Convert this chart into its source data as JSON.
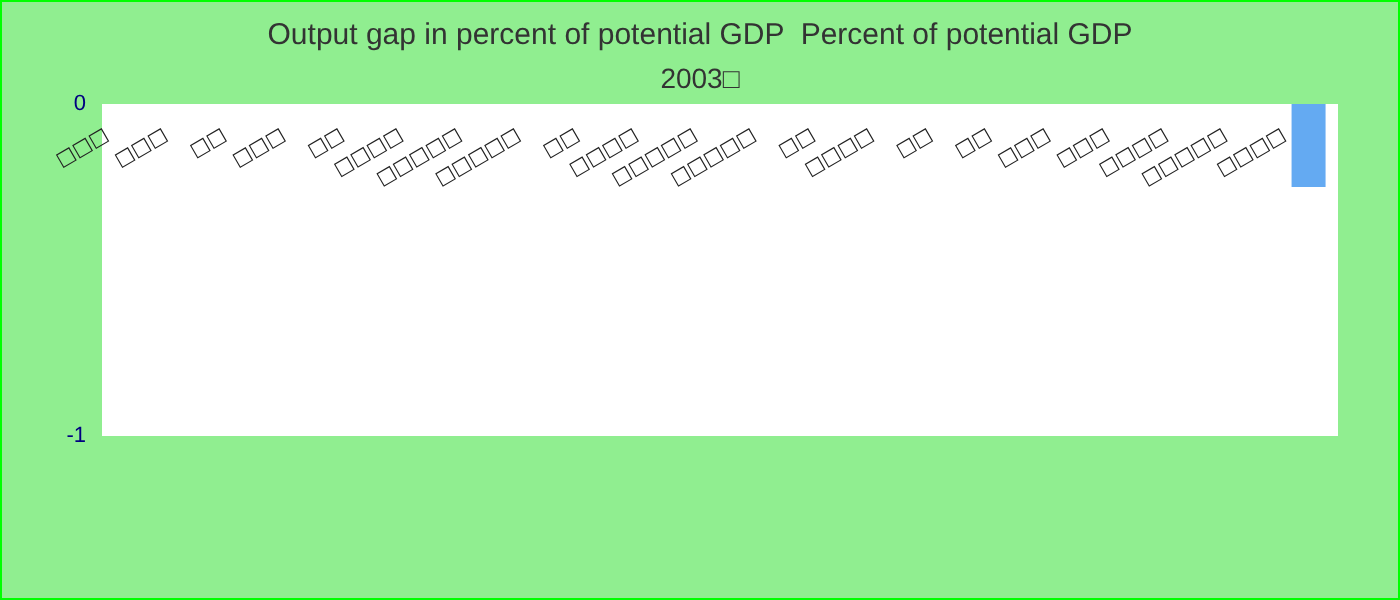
{
  "chart_data": {
    "type": "bar",
    "title": "Output gap in percent of potential GDP  Percent of potential GDP",
    "subtitle": "2003□",
    "categories": [
      "□□□",
      "□□□",
      "□□",
      "□□□",
      "□□",
      "□□□□",
      "□□□□□",
      "□□□□□",
      "□□",
      "□□□□",
      "□□□□□",
      "□□□□□",
      "□□",
      "□□□□",
      "□□",
      "□□",
      "□□□",
      "□□□",
      "□□□□",
      "□□□□□",
      "□□□□"
    ],
    "values": [
      null,
      null,
      null,
      null,
      null,
      null,
      null,
      null,
      null,
      null,
      null,
      null,
      null,
      null,
      null,
      null,
      null,
      null,
      null,
      null,
      -0.25
    ],
    "color": "#64aaf2",
    "ylim": [
      -1,
      0
    ],
    "yticks": [
      -1,
      0
    ],
    "grid": false
  }
}
